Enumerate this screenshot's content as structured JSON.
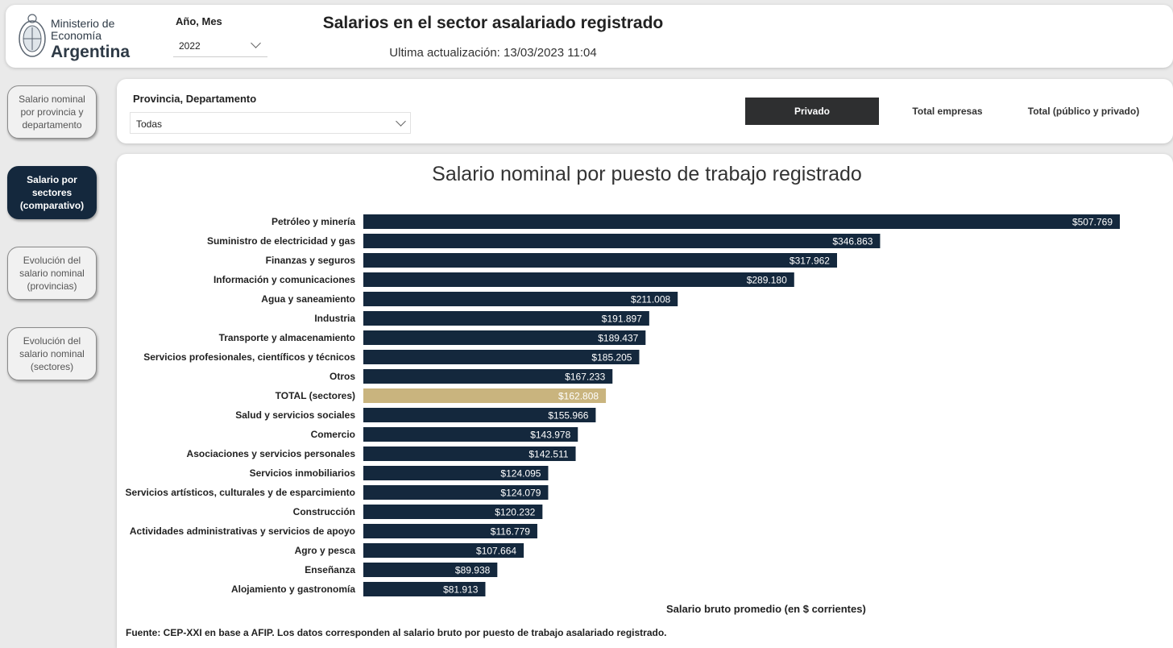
{
  "header": {
    "logo": {
      "line1": "Ministerio de",
      "line2": "Economía",
      "line3": "Argentina"
    },
    "period_label": "Año, Mes",
    "period_value": "2022",
    "title": "Salarios en el sector asalariado registrado",
    "updated": "Ultima actualización: 13/03/2023 11:04"
  },
  "nav": [
    {
      "label": "Salario nominal por provincia y departamento",
      "active": false
    },
    {
      "label": "Salario por sectores (comparativo)",
      "active": true
    },
    {
      "label": "Evolución del salario nominal (provincias)",
      "active": false
    },
    {
      "label": "Evolución del salario nominal (sectores)",
      "active": false
    }
  ],
  "filters": {
    "prov_label": "Provincia, Departamento",
    "prov_value": "Todas",
    "toggles": [
      {
        "label": "Privado",
        "active": true
      },
      {
        "label": "Total empresas",
        "active": false
      },
      {
        "label": "Total (público y privado)",
        "active": false
      }
    ]
  },
  "colors": {
    "bar": "#14283d",
    "highlight": "#c9b47e",
    "active_nav": "#14283d",
    "active_toggle": "#2e2f30"
  },
  "chart_data": {
    "type": "bar",
    "orientation": "horizontal",
    "title": "Salario nominal por puesto de trabajo registrado",
    "xlabel": "Salario bruto promedio (en $ corrientes)",
    "ylabel": "",
    "xlim": [
      0,
      507769
    ],
    "highlight_category": "TOTAL (sectores)",
    "categories": [
      "Petróleo y minería",
      "Suministro de electricidad y gas",
      "Finanzas y seguros",
      "Información y comunicaciones",
      "Agua y saneamiento",
      "Industria",
      "Transporte y almacenamiento",
      "Servicios profesionales, científicos y técnicos",
      "Otros",
      "TOTAL (sectores)",
      "Salud y servicios sociales",
      "Comercio",
      "Asociaciones y servicios personales",
      "Servicios inmobiliarios",
      "Servicios artísticos, culturales y de esparcimiento",
      "Construcción",
      "Actividades administrativas y servicios de apoyo",
      "Agro y pesca",
      "Enseñanza",
      "Alojamiento y gastronomía"
    ],
    "values": [
      507769,
      346863,
      317962,
      289180,
      211008,
      191897,
      189437,
      185205,
      167233,
      162808,
      155966,
      143978,
      142511,
      124095,
      124079,
      120232,
      116779,
      107664,
      89938,
      81913
    ],
    "value_labels": [
      "$507.769",
      "$346.863",
      "$317.962",
      "$289.180",
      "$211.008",
      "$191.897",
      "$189.437",
      "$185.205",
      "$167.233",
      "$162.808",
      "$155.966",
      "$143.978",
      "$142.511",
      "$124.095",
      "$124.079",
      "$120.232",
      "$116.779",
      "$107.664",
      "$89.938",
      "$81.913"
    ]
  },
  "source": "Fuente: CEP-XXI en base a AFIP. Los datos corresponden al salario bruto por puesto de trabajo asalariado registrado."
}
